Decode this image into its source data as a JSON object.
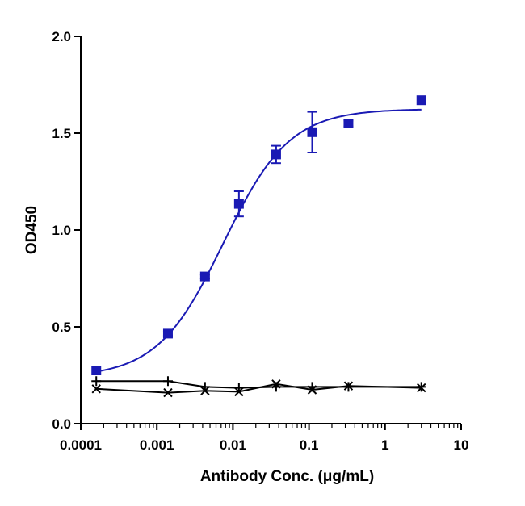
{
  "chart_data": {
    "type": "scatter",
    "xlabel": "Antibody Conc. (μg/mL)",
    "ylabel": "OD450",
    "x_scale": "log",
    "xlim": [
      0.0001,
      10
    ],
    "ylim": [
      0,
      2.0
    ],
    "x_ticks": [
      0.0001,
      0.001,
      0.01,
      0.1,
      1,
      10
    ],
    "x_tick_labels": [
      "0.0001",
      "0.001",
      "0.01",
      "0.1",
      "1",
      "10"
    ],
    "y_ticks": [
      0,
      0.5,
      1.0,
      1.5,
      2.0
    ],
    "y_tick_labels": [
      "0.0",
      "0.5",
      "1.0",
      "1.5",
      "2.0"
    ],
    "grid": false,
    "series": [
      {
        "marker": "square",
        "color": "#1a1ab4",
        "x": [
          0.00016,
          0.0014,
          0.0043,
          0.012,
          0.037,
          0.11,
          0.33,
          3.0
        ],
        "y": [
          0.275,
          0.465,
          0.76,
          1.135,
          1.39,
          1.505,
          1.55,
          1.67
        ],
        "y_err": [
          0.0,
          0.01,
          0.01,
          0.065,
          0.045,
          0.105,
          0.015,
          0.0
        ],
        "fit": {
          "bottom": 0.24,
          "top": 1.625,
          "ec50": 0.0075,
          "hill": 1.0
        }
      },
      {
        "marker": "plus",
        "color": "#000000",
        "x": [
          0.00016,
          0.0014,
          0.0043,
          0.012,
          0.037,
          0.11,
          0.33,
          3.0
        ],
        "y": [
          0.22,
          0.22,
          0.19,
          0.185,
          0.19,
          0.19,
          0.19,
          0.19
        ]
      },
      {
        "marker": "x",
        "color": "#000000",
        "x": [
          0.00016,
          0.0014,
          0.0043,
          0.012,
          0.037,
          0.11,
          0.33,
          3.0
        ],
        "y": [
          0.18,
          0.16,
          0.17,
          0.165,
          0.205,
          0.175,
          0.195,
          0.185
        ]
      }
    ]
  }
}
